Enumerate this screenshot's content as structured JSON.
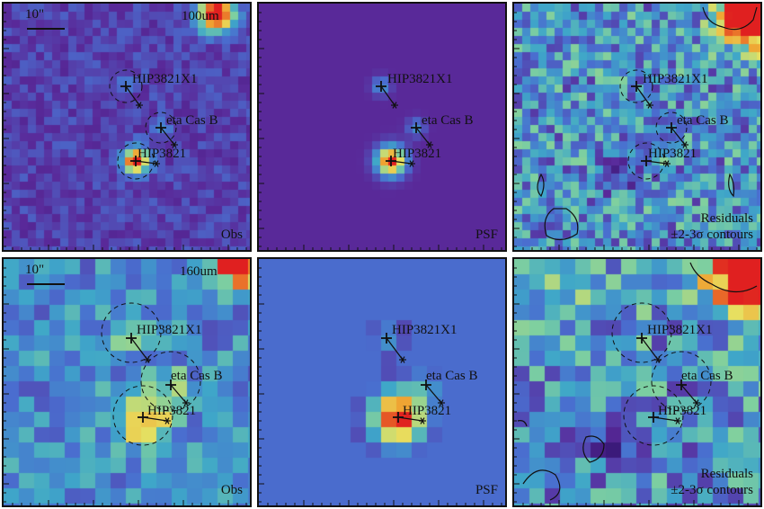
{
  "scale_bar_label": "10\"",
  "rows": [
    {
      "band": "100um",
      "panels": [
        {
          "label_lines": [
            "Obs"
          ]
        },
        {
          "label_lines": [
            "PSF"
          ]
        },
        {
          "label_lines": [
            "Residuals",
            "±2-3σ contours"
          ]
        }
      ]
    },
    {
      "band": "160um",
      "panels": [
        {
          "label_lines": [
            "Obs"
          ]
        },
        {
          "label_lines": [
            "PSF"
          ]
        },
        {
          "label_lines": [
            "Residuals",
            "±2-3σ contours"
          ]
        }
      ]
    }
  ],
  "sources": [
    {
      "name": "HIP3821X1"
    },
    {
      "name": "eta Cas B"
    },
    {
      "name": "HIP3821"
    }
  ],
  "colormap": [
    "#3b1a7a",
    "#5a2a9a",
    "#4a6fd0",
    "#3fa7c9",
    "#7fd0a0",
    "#e8e060",
    "#f0a030",
    "#e02020"
  ]
}
